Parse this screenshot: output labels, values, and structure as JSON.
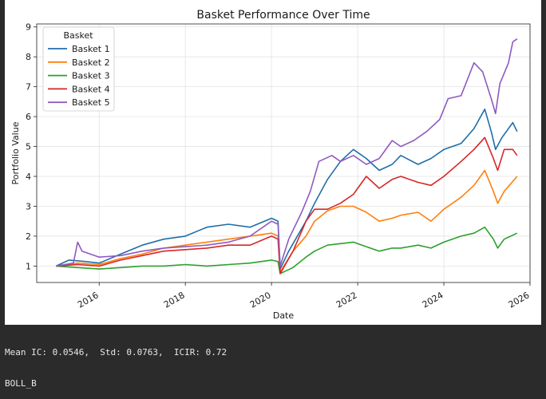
{
  "chart_data": {
    "type": "line",
    "title": "Basket Performance Over Time",
    "xlabel": "Date",
    "ylabel": "Portfolio Value",
    "xlim": [
      2014.55,
      2026.0
    ],
    "ylim": [
      0.45,
      9.1
    ],
    "grid": true,
    "legend_title": "Basket",
    "legend_position": "top-left",
    "x_ticks": [
      {
        "v": 2016,
        "label": "2016"
      },
      {
        "v": 2018,
        "label": "2018"
      },
      {
        "v": 2020,
        "label": "2020"
      },
      {
        "v": 2022,
        "label": "2022"
      },
      {
        "v": 2024,
        "label": "2024"
      },
      {
        "v": 2026,
        "label": "2026"
      }
    ],
    "y_ticks": [
      {
        "v": 1,
        "label": "1"
      },
      {
        "v": 2,
        "label": "2"
      },
      {
        "v": 3,
        "label": "3"
      },
      {
        "v": 4,
        "label": "4"
      },
      {
        "v": 5,
        "label": "5"
      },
      {
        "v": 6,
        "label": "6"
      },
      {
        "v": 7,
        "label": "7"
      },
      {
        "v": 8,
        "label": "8"
      },
      {
        "v": 9,
        "label": "9"
      }
    ],
    "series": [
      {
        "name": "Basket 1",
        "color": "#1f6ea8",
        "points": [
          [
            2015.0,
            1.0
          ],
          [
            2015.3,
            1.2
          ],
          [
            2015.7,
            1.15
          ],
          [
            2016.0,
            1.1
          ],
          [
            2016.5,
            1.4
          ],
          [
            2017.0,
            1.7
          ],
          [
            2017.5,
            1.9
          ],
          [
            2018.0,
            2.0
          ],
          [
            2018.5,
            2.3
          ],
          [
            2019.0,
            2.4
          ],
          [
            2019.5,
            2.3
          ],
          [
            2020.0,
            2.6
          ],
          [
            2020.15,
            2.5
          ],
          [
            2020.2,
            0.9
          ],
          [
            2020.4,
            1.5
          ],
          [
            2020.8,
            2.5
          ],
          [
            2021.0,
            3.1
          ],
          [
            2021.3,
            3.9
          ],
          [
            2021.6,
            4.5
          ],
          [
            2021.9,
            4.9
          ],
          [
            2022.2,
            4.6
          ],
          [
            2022.5,
            4.2
          ],
          [
            2022.8,
            4.4
          ],
          [
            2023.0,
            4.7
          ],
          [
            2023.4,
            4.4
          ],
          [
            2023.7,
            4.6
          ],
          [
            2024.0,
            4.9
          ],
          [
            2024.4,
            5.1
          ],
          [
            2024.7,
            5.6
          ],
          [
            2024.95,
            6.25
          ],
          [
            2025.1,
            5.5
          ],
          [
            2025.2,
            4.9
          ],
          [
            2025.35,
            5.3
          ],
          [
            2025.6,
            5.8
          ],
          [
            2025.7,
            5.5
          ]
        ]
      },
      {
        "name": "Basket 2",
        "color": "#ff7f0e",
        "points": [
          [
            2015.0,
            1.0
          ],
          [
            2015.5,
            1.1
          ],
          [
            2016.0,
            1.05
          ],
          [
            2016.5,
            1.25
          ],
          [
            2017.0,
            1.4
          ],
          [
            2017.5,
            1.6
          ],
          [
            2018.0,
            1.7
          ],
          [
            2018.5,
            1.8
          ],
          [
            2019.0,
            1.9
          ],
          [
            2019.5,
            2.0
          ],
          [
            2020.0,
            2.1
          ],
          [
            2020.15,
            2.0
          ],
          [
            2020.2,
            0.8
          ],
          [
            2020.5,
            1.5
          ],
          [
            2020.8,
            2.0
          ],
          [
            2021.0,
            2.5
          ],
          [
            2021.3,
            2.85
          ],
          [
            2021.6,
            3.0
          ],
          [
            2021.9,
            3.0
          ],
          [
            2022.2,
            2.8
          ],
          [
            2022.5,
            2.5
          ],
          [
            2022.8,
            2.6
          ],
          [
            2023.0,
            2.7
          ],
          [
            2023.4,
            2.8
          ],
          [
            2023.7,
            2.5
          ],
          [
            2024.0,
            2.9
          ],
          [
            2024.4,
            3.3
          ],
          [
            2024.7,
            3.7
          ],
          [
            2024.95,
            4.2
          ],
          [
            2025.15,
            3.5
          ],
          [
            2025.25,
            3.1
          ],
          [
            2025.4,
            3.5
          ],
          [
            2025.7,
            4.0
          ]
        ]
      },
      {
        "name": "Basket 3",
        "color": "#2ca02c",
        "points": [
          [
            2015.0,
            1.0
          ],
          [
            2015.5,
            0.95
          ],
          [
            2016.0,
            0.9
          ],
          [
            2016.5,
            0.95
          ],
          [
            2017.0,
            1.0
          ],
          [
            2017.5,
            1.0
          ],
          [
            2018.0,
            1.05
          ],
          [
            2018.5,
            1.0
          ],
          [
            2019.0,
            1.05
          ],
          [
            2019.5,
            1.1
          ],
          [
            2020.0,
            1.2
          ],
          [
            2020.15,
            1.15
          ],
          [
            2020.2,
            0.75
          ],
          [
            2020.5,
            0.95
          ],
          [
            2020.8,
            1.3
          ],
          [
            2021.0,
            1.5
          ],
          [
            2021.3,
            1.7
          ],
          [
            2021.6,
            1.75
          ],
          [
            2021.9,
            1.8
          ],
          [
            2022.2,
            1.65
          ],
          [
            2022.5,
            1.5
          ],
          [
            2022.8,
            1.6
          ],
          [
            2023.0,
            1.6
          ],
          [
            2023.4,
            1.7
          ],
          [
            2023.7,
            1.6
          ],
          [
            2024.0,
            1.8
          ],
          [
            2024.4,
            2.0
          ],
          [
            2024.7,
            2.1
          ],
          [
            2024.95,
            2.3
          ],
          [
            2025.15,
            1.9
          ],
          [
            2025.25,
            1.6
          ],
          [
            2025.4,
            1.9
          ],
          [
            2025.7,
            2.1
          ]
        ]
      },
      {
        "name": "Basket 4",
        "color": "#d62728",
        "points": [
          [
            2015.0,
            1.0
          ],
          [
            2015.5,
            1.05
          ],
          [
            2016.0,
            1.0
          ],
          [
            2016.5,
            1.2
          ],
          [
            2017.0,
            1.35
          ],
          [
            2017.5,
            1.5
          ],
          [
            2018.0,
            1.55
          ],
          [
            2018.5,
            1.6
          ],
          [
            2019.0,
            1.7
          ],
          [
            2019.5,
            1.7
          ],
          [
            2020.0,
            2.0
          ],
          [
            2020.15,
            1.9
          ],
          [
            2020.2,
            0.75
          ],
          [
            2020.5,
            1.5
          ],
          [
            2020.8,
            2.5
          ],
          [
            2021.0,
            2.9
          ],
          [
            2021.3,
            2.9
          ],
          [
            2021.6,
            3.1
          ],
          [
            2021.9,
            3.4
          ],
          [
            2022.2,
            4.0
          ],
          [
            2022.5,
            3.6
          ],
          [
            2022.8,
            3.9
          ],
          [
            2023.0,
            4.0
          ],
          [
            2023.4,
            3.8
          ],
          [
            2023.7,
            3.7
          ],
          [
            2024.0,
            4.0
          ],
          [
            2024.4,
            4.5
          ],
          [
            2024.7,
            4.9
          ],
          [
            2024.95,
            5.3
          ],
          [
            2025.15,
            4.6
          ],
          [
            2025.25,
            4.2
          ],
          [
            2025.4,
            4.9
          ],
          [
            2025.6,
            4.9
          ],
          [
            2025.7,
            4.7
          ]
        ]
      },
      {
        "name": "Basket 5",
        "color": "#8e5ac0",
        "points": [
          [
            2015.0,
            1.0
          ],
          [
            2015.4,
            1.1
          ],
          [
            2015.5,
            1.8
          ],
          [
            2015.6,
            1.5
          ],
          [
            2016.0,
            1.3
          ],
          [
            2016.5,
            1.35
          ],
          [
            2017.0,
            1.5
          ],
          [
            2017.5,
            1.6
          ],
          [
            2018.0,
            1.65
          ],
          [
            2018.5,
            1.7
          ],
          [
            2019.0,
            1.8
          ],
          [
            2019.5,
            2.0
          ],
          [
            2020.0,
            2.5
          ],
          [
            2020.15,
            2.4
          ],
          [
            2020.2,
            1.0
          ],
          [
            2020.4,
            1.9
          ],
          [
            2020.7,
            2.8
          ],
          [
            2020.9,
            3.5
          ],
          [
            2021.1,
            4.5
          ],
          [
            2021.4,
            4.7
          ],
          [
            2021.6,
            4.5
          ],
          [
            2021.9,
            4.7
          ],
          [
            2022.2,
            4.4
          ],
          [
            2022.5,
            4.6
          ],
          [
            2022.8,
            5.2
          ],
          [
            2023.0,
            5.0
          ],
          [
            2023.3,
            5.2
          ],
          [
            2023.6,
            5.5
          ],
          [
            2023.9,
            5.9
          ],
          [
            2024.1,
            6.6
          ],
          [
            2024.4,
            6.7
          ],
          [
            2024.7,
            7.8
          ],
          [
            2024.9,
            7.5
          ],
          [
            2025.1,
            6.6
          ],
          [
            2025.2,
            6.1
          ],
          [
            2025.3,
            7.1
          ],
          [
            2025.5,
            7.8
          ],
          [
            2025.6,
            8.5
          ],
          [
            2025.7,
            8.6
          ]
        ]
      }
    ]
  },
  "console": {
    "line1": "Mean IC: 0.0546,  Std: 0.0763,  ICIR: 0.72",
    "line2": "BOLL_B"
  }
}
